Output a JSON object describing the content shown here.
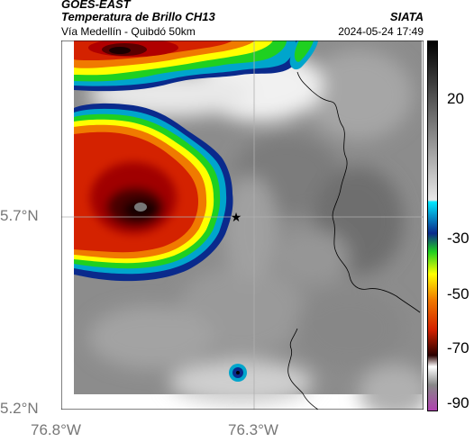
{
  "header": {
    "source": "GOES-EAST",
    "product": "Temperatura de Brillo CH13",
    "subtitle": "Vía Medellín - Quibdó 50km",
    "institution": "SIATA",
    "datetime": "2024-05-24 17:49"
  },
  "map": {
    "lat_ticks": [
      "5.7°N",
      "5.2°N"
    ],
    "lon_ticks": [
      "76.8°W",
      "76.3°W"
    ],
    "marker": "star-marker",
    "gridlines": true
  },
  "colorbar": {
    "ticks": [
      "20",
      "-30",
      "-50",
      "-70",
      "-90"
    ]
  },
  "colors": {
    "cold_core": "#1a0000",
    "red": "#d42200",
    "orange": "#f07a00",
    "yellow": "#ffff00",
    "green": "#1fd020",
    "cyan": "#00a5cc",
    "blue": "#0a2a8c",
    "magenta": "#d040c0"
  }
}
